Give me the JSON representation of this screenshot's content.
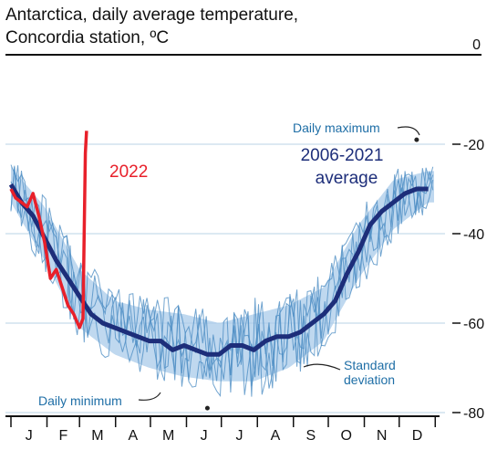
{
  "chart_data": {
    "type": "line",
    "title": [
      "Antarctica, daily average temperature,",
      "Concordia station, ºC"
    ],
    "months": [
      "J",
      "F",
      "M",
      "A",
      "M",
      "J",
      "J",
      "A",
      "S",
      "O",
      "N",
      "D"
    ],
    "yticks": [
      0,
      -20,
      -40,
      -60,
      -80
    ],
    "ylim": [
      -80,
      0
    ],
    "grid": true,
    "colors": {
      "average": "#1d2e7a",
      "series_2022": "#e8202a",
      "band": "#a9cbe9",
      "year_lines": "#4f8fc4",
      "grid": "#b9d3e6",
      "annotation_text": "#1e6ea6",
      "axis": "#111111"
    },
    "annotations": {
      "daily_maximum": "Daily maximum",
      "average_label_line1": "2006-2021",
      "average_label_line2": "average",
      "series_2022_label": "2022",
      "std_line1": "Standard",
      "std_line2": "deviation",
      "daily_minimum": "Daily minimum"
    },
    "series": [
      {
        "name": "2006-2021 average",
        "x_day": [
          1,
          10,
          20,
          30,
          40,
          50,
          60,
          70,
          80,
          90,
          100,
          110,
          120,
          130,
          140,
          150,
          160,
          170,
          180,
          190,
          200,
          210,
          220,
          230,
          240,
          250,
          260,
          270,
          280,
          290,
          300,
          310,
          320,
          330,
          340,
          350,
          360
        ],
        "values": [
          -29,
          -33,
          -36,
          -41,
          -46,
          -50,
          -54,
          -58,
          -60,
          -61,
          -62,
          -63,
          -64,
          -64,
          -66,
          -65,
          -66,
          -67,
          -67,
          -65,
          -65,
          -66,
          -64,
          -63,
          -63,
          -62,
          -60,
          -58,
          -55,
          -49,
          -44,
          -38,
          -35,
          -33,
          -31,
          -30,
          -30
        ]
      },
      {
        "name": "2022",
        "x_day": [
          1,
          5,
          10,
          15,
          20,
          25,
          30,
          35,
          40,
          45,
          50,
          55,
          60,
          63,
          64,
          65,
          66
        ],
        "values": [
          -30,
          -32,
          -33,
          -34,
          -31,
          -36,
          -42,
          -50,
          -48,
          -52,
          -56,
          -58,
          -61,
          -59,
          -40,
          -22,
          -17
        ]
      }
    ],
    "band_std": {
      "x_day": [
        1,
        30,
        60,
        90,
        120,
        150,
        180,
        210,
        240,
        270,
        300,
        330,
        360
      ],
      "upper": [
        -25,
        -34,
        -48,
        -55,
        -57,
        -58,
        -60,
        -58,
        -56,
        -52,
        -38,
        -28,
        -26
      ],
      "lower": [
        -33,
        -46,
        -61,
        -67,
        -70,
        -72,
        -73,
        -73,
        -70,
        -64,
        -50,
        -39,
        -33
      ]
    },
    "daily_maximum": {
      "x_day": 350,
      "value": -19
    },
    "daily_minimum": {
      "x_day": 170,
      "value": -79
    }
  }
}
